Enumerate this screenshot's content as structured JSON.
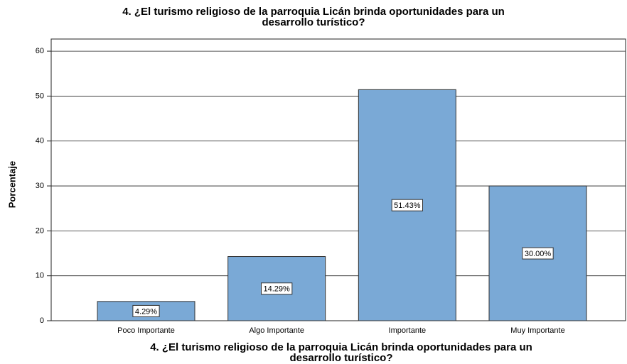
{
  "chart_data": {
    "type": "bar",
    "title": [
      "4. ¿El turismo religioso de la parroquia Licán brinda oportunidades para un",
      "desarrollo turístico?"
    ],
    "x_label": [
      "4. ¿El turismo religioso de la parroquia Licán brinda oportunidades para un",
      "desarrollo turístico?"
    ],
    "y_label": "Porcentaje",
    "categories": [
      "Poco Importante",
      "Algo Importante",
      "Importante",
      "Muy Importante"
    ],
    "values": [
      4.29,
      14.29,
      51.43,
      30.0
    ],
    "value_labels": [
      "4.29%",
      "14.29%",
      "51.43%",
      "30.00%"
    ],
    "color": "#7aa9d6",
    "ylim": [
      0,
      62.7
    ],
    "yticks": [
      0,
      10,
      20,
      30,
      40,
      50,
      60
    ],
    "grid": true
  }
}
